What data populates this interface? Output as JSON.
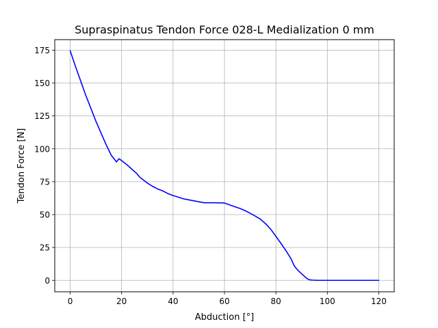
{
  "chart_data": {
    "type": "line",
    "title": "Supraspinatus Tendon Force 028-L Medialization 0 mm",
    "xlabel": "Abduction [°]",
    "ylabel": "Tendon Force [N]",
    "xlim": [
      -6,
      126
    ],
    "ylim": [
      -8.7,
      183
    ],
    "xticks": [
      0,
      20,
      40,
      60,
      80,
      100,
      120
    ],
    "yticks": [
      0,
      25,
      50,
      75,
      100,
      125,
      150,
      175
    ],
    "grid": true,
    "series": [
      {
        "color": "#0000ff",
        "x": [
          0,
          2,
          4,
          6,
          8,
          10,
          12,
          14,
          16,
          18,
          19,
          20,
          22,
          24,
          26,
          27,
          28,
          30,
          32,
          34,
          36,
          38,
          40,
          44,
          48,
          52,
          56,
          60,
          64,
          66,
          68,
          70,
          72,
          74,
          76,
          78,
          80,
          82,
          84,
          86,
          87,
          88,
          89,
          90,
          91,
          92,
          92.5,
          93,
          93.5,
          94,
          96,
          100,
          110,
          120
        ],
        "y": [
          174.5,
          163,
          152,
          141,
          131,
          121,
          112,
          103,
          95,
          90,
          92.5,
          91,
          88,
          84.5,
          81,
          78.5,
          77,
          74,
          71.5,
          69.5,
          68,
          66,
          64.5,
          62,
          60.5,
          59,
          59,
          58.8,
          56,
          54.7,
          53,
          51,
          48.8,
          46.5,
          43,
          38.8,
          33.5,
          28,
          22.3,
          16,
          11.5,
          8.8,
          6.8,
          5,
          3.2,
          1.5,
          0.9,
          0.5,
          0.3,
          0.2,
          0.05,
          0,
          0,
          0
        ]
      }
    ]
  }
}
